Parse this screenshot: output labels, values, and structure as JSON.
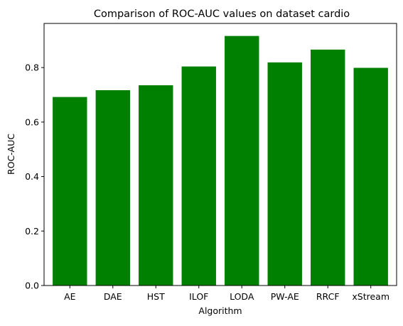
{
  "chart_data": {
    "type": "bar",
    "title": "Comparison of ROC-AUC values on dataset cardio",
    "xlabel": "Algorithm",
    "ylabel": "ROC-AUC",
    "categories": [
      "AE",
      "DAE",
      "HST",
      "ILOF",
      "LODA",
      "PW-AE",
      "RRCF",
      "xStream"
    ],
    "values": [
      0.692,
      0.717,
      0.735,
      0.804,
      0.916,
      0.819,
      0.866,
      0.799
    ],
    "ylim": [
      0,
      0.962
    ],
    "yticks": [
      0.0,
      0.2,
      0.4,
      0.6,
      0.8
    ],
    "ytick_labels": [
      "0.0",
      "0.2",
      "0.4",
      "0.6",
      "0.8"
    ],
    "bar_color": "#008000",
    "grid": false,
    "legend": "none"
  }
}
